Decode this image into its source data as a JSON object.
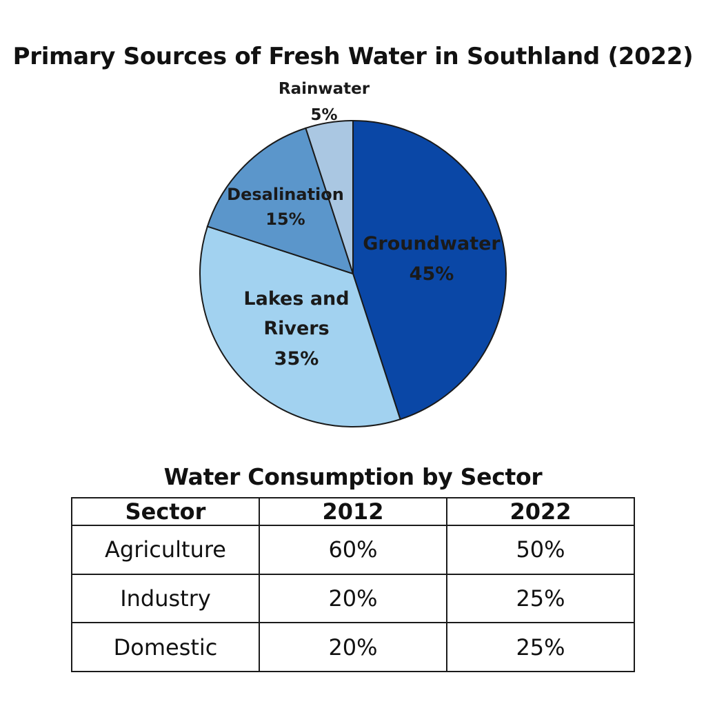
{
  "chart_data": [
    {
      "type": "pie",
      "title": "Primary Sources of Fresh Water in Southland (2022)",
      "categories": [
        "Groundwater",
        "Lakes and Rivers",
        "Desalination",
        "Rainwater"
      ],
      "values": [
        45,
        35,
        15,
        5
      ],
      "labels": [
        "Groundwater",
        "Lakes and\nRivers",
        "Desalination",
        "Rainwater"
      ],
      "value_labels": [
        "45%",
        "35%",
        "15%",
        "5%"
      ],
      "colors": [
        "#0a47a6",
        "#a2d2f0",
        "#5b96cb",
        "#aac7e2"
      ]
    },
    {
      "type": "table",
      "title": "Water Consumption by Sector",
      "columns": [
        "Sector",
        "2012",
        "2022"
      ],
      "rows": [
        [
          "Agriculture",
          "60%",
          "50%"
        ],
        [
          "Industry",
          "20%",
          "25%"
        ],
        [
          "Domestic",
          "20%",
          "25%"
        ]
      ]
    }
  ]
}
